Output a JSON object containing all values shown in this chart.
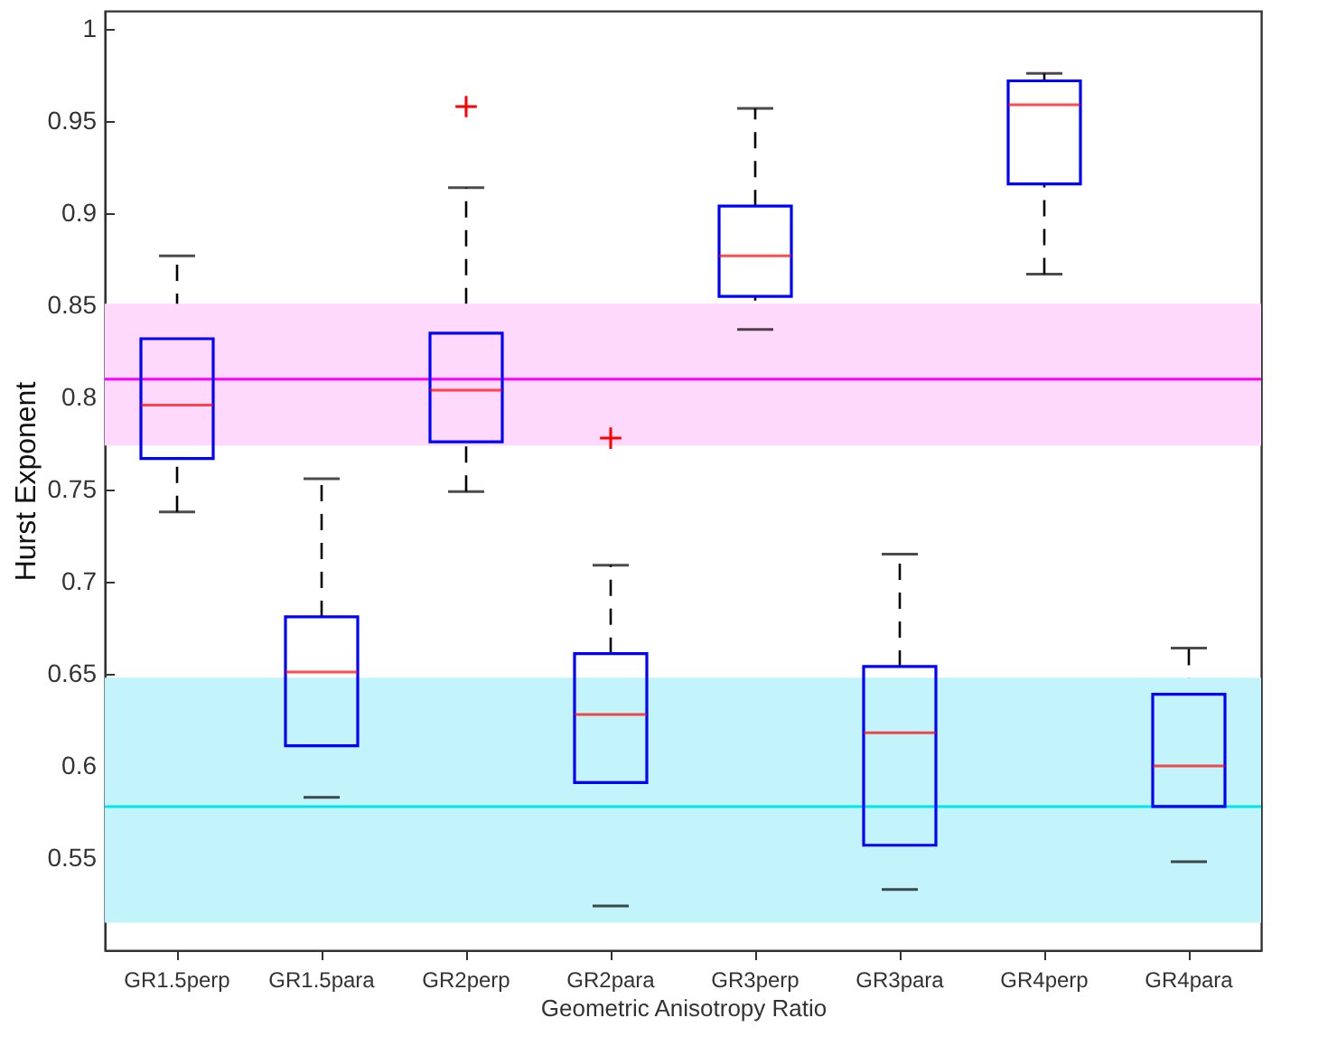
{
  "chart_data": {
    "type": "box",
    "xlabel": "Geometric Anisotropy Ratio",
    "ylabel": "Hurst Exponent",
    "categories": [
      "GR1.5perp",
      "GR1.5para",
      "GR2perp",
      "GR2para",
      "GR3perp",
      "GR3para",
      "GR4perp",
      "GR4para"
    ],
    "boxes": [
      {
        "low": 0.738,
        "q1": 0.767,
        "median": 0.796,
        "q3": 0.832,
        "high": 0.877
      },
      {
        "low": 0.583,
        "q1": 0.611,
        "median": 0.651,
        "q3": 0.681,
        "high": 0.756
      },
      {
        "low": 0.749,
        "q1": 0.776,
        "median": 0.804,
        "q3": 0.835,
        "high": 0.914,
        "outliers": [
          0.958
        ]
      },
      {
        "low": 0.524,
        "q1": 0.591,
        "median": 0.628,
        "q3": 0.661,
        "high": 0.709,
        "outliers": [
          0.778
        ]
      },
      {
        "low": 0.837,
        "q1": 0.855,
        "median": 0.877,
        "q3": 0.904,
        "high": 0.957
      },
      {
        "low": 0.533,
        "q1": 0.557,
        "median": 0.618,
        "q3": 0.654,
        "high": 0.715
      },
      {
        "low": 0.867,
        "q1": 0.916,
        "median": 0.959,
        "q3": 0.972,
        "high": 0.976
      },
      {
        "low": 0.548,
        "q1": 0.578,
        "median": 0.6,
        "q3": 0.639,
        "high": 0.664
      }
    ],
    "ylim": [
      0.5,
      1.01
    ],
    "yticks": [
      0.55,
      0.6,
      0.65,
      0.7,
      0.75,
      0.8,
      0.85,
      0.9,
      0.95,
      1
    ],
    "bands": [
      {
        "axis": "y",
        "from": 0.774,
        "to": 0.851,
        "color": "#ffd9fb"
      },
      {
        "axis": "y",
        "from": 0.515,
        "to": 0.648,
        "color": "#c3f4fb"
      }
    ],
    "ref_lines": [
      {
        "axis": "y",
        "value": 0.81,
        "color": "#ff00ff"
      },
      {
        "axis": "y",
        "value": 0.578,
        "color": "#00e5ee"
      }
    ]
  }
}
